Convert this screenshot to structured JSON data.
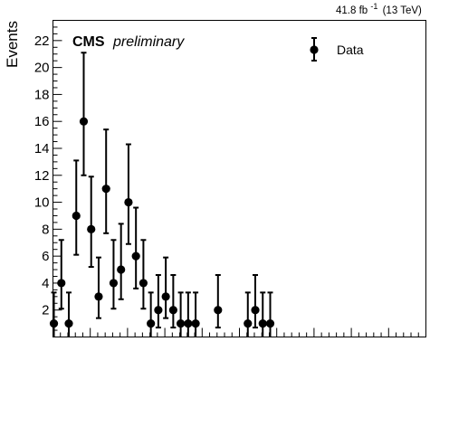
{
  "header": {
    "lumi_value": "41.8 fb",
    "lumi_exp": "-1",
    "lumi_energy": "(13 TeV)",
    "experiment": "CMS",
    "status": "preliminary"
  },
  "colors": {
    "data_marker": "#000000",
    "axis": "#000000"
  },
  "chart_data": {
    "type": "scatter",
    "ylabel": "Events",
    "xlabel": "",
    "ylim": [
      0,
      23.5
    ],
    "ytick_step": 2,
    "x_major_spacing_units": 10,
    "x_range_units": [
      0,
      100
    ],
    "legend": {
      "entries": [
        "Data"
      ],
      "placement": "top-right"
    },
    "series": [
      {
        "name": "Data",
        "marker": "circle",
        "points": [
          {
            "x": 0.25,
            "y": 1,
            "elo": 1,
            "ehi": 2.3
          },
          {
            "x": 2.25,
            "y": 4,
            "elo": 1.9,
            "ehi": 3.2
          },
          {
            "x": 4.25,
            "y": 1,
            "elo": 1,
            "ehi": 2.3
          },
          {
            "x": 6.25,
            "y": 9,
            "elo": 2.9,
            "ehi": 4.1
          },
          {
            "x": 8.25,
            "y": 16,
            "elo": 4,
            "ehi": 5.1
          },
          {
            "x": 10.25,
            "y": 8,
            "elo": 2.8,
            "ehi": 3.9
          },
          {
            "x": 12.25,
            "y": 3,
            "elo": 1.6,
            "ehi": 2.9
          },
          {
            "x": 14.25,
            "y": 11,
            "elo": 3.3,
            "ehi": 4.4
          },
          {
            "x": 16.25,
            "y": 4,
            "elo": 1.9,
            "ehi": 3.2
          },
          {
            "x": 18.25,
            "y": 5,
            "elo": 2.2,
            "ehi": 3.4
          },
          {
            "x": 20.25,
            "y": 10,
            "elo": 3.1,
            "ehi": 4.3
          },
          {
            "x": 22.25,
            "y": 6,
            "elo": 2.4,
            "ehi": 3.6
          },
          {
            "x": 24.25,
            "y": 4,
            "elo": 1.9,
            "ehi": 3.2
          },
          {
            "x": 26.25,
            "y": 1,
            "elo": 1,
            "ehi": 2.3
          },
          {
            "x": 28.25,
            "y": 2,
            "elo": 1.3,
            "ehi": 2.6
          },
          {
            "x": 30.25,
            "y": 3,
            "elo": 1.6,
            "ehi": 2.9
          },
          {
            "x": 32.25,
            "y": 2,
            "elo": 1.3,
            "ehi": 2.6
          },
          {
            "x": 34.25,
            "y": 1,
            "elo": 1,
            "ehi": 2.3
          },
          {
            "x": 36.25,
            "y": 1,
            "elo": 1,
            "ehi": 2.3
          },
          {
            "x": 38.25,
            "y": 1,
            "elo": 1,
            "ehi": 2.3
          },
          {
            "x": 44.25,
            "y": 2,
            "elo": 1.3,
            "ehi": 2.6
          },
          {
            "x": 52.25,
            "y": 1,
            "elo": 1,
            "ehi": 2.3
          },
          {
            "x": 54.25,
            "y": 2,
            "elo": 1.3,
            "ehi": 2.6
          },
          {
            "x": 56.25,
            "y": 1,
            "elo": 1,
            "ehi": 2.3
          },
          {
            "x": 58.25,
            "y": 1,
            "elo": 1,
            "ehi": 2.3
          }
        ]
      }
    ]
  }
}
